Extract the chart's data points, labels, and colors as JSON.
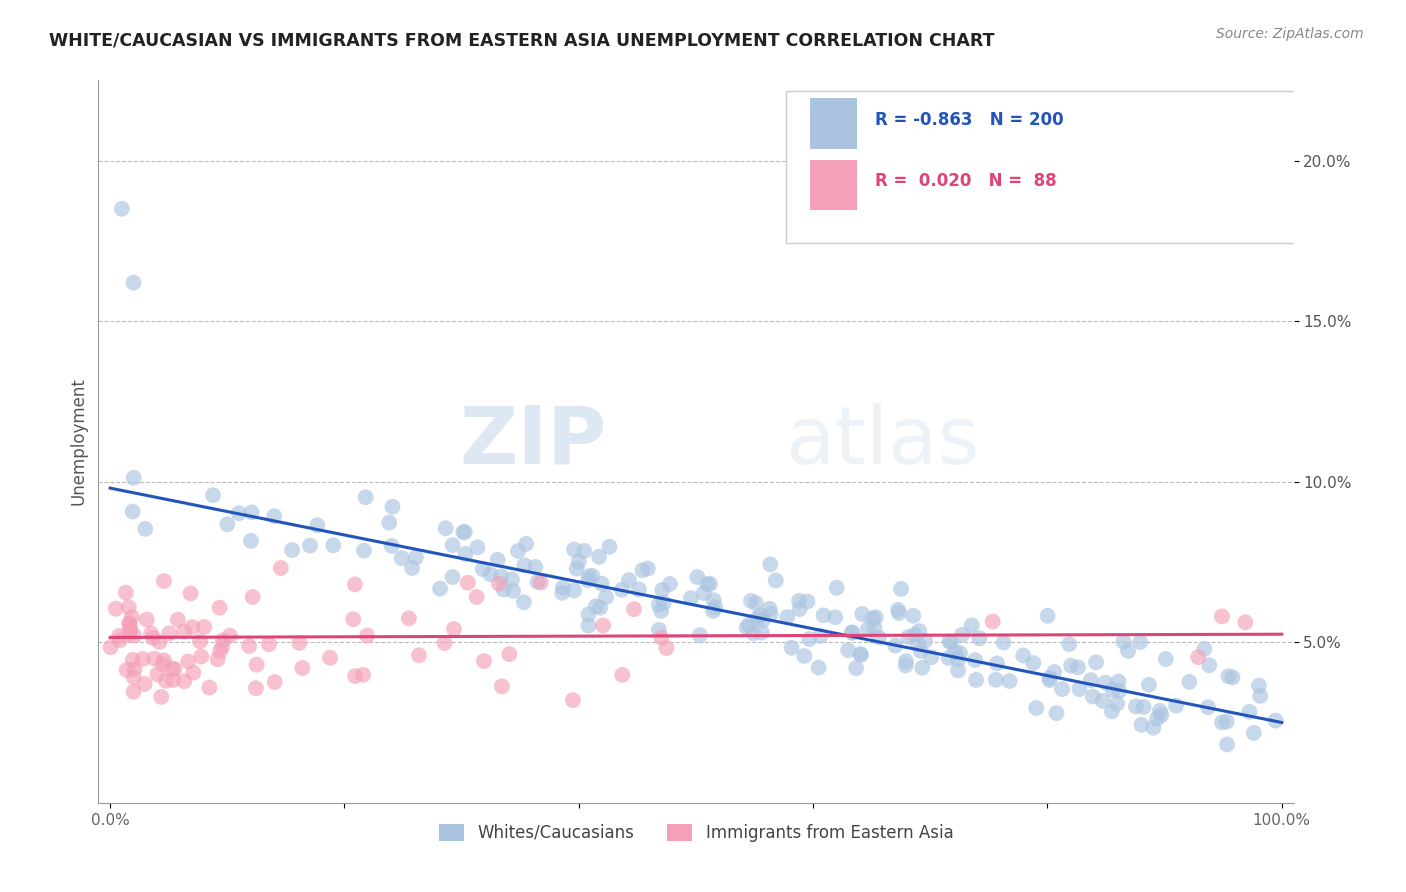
{
  "title": "WHITE/CAUCASIAN VS IMMIGRANTS FROM EASTERN ASIA UNEMPLOYMENT CORRELATION CHART",
  "source": "Source: ZipAtlas.com",
  "ylabel": "Unemployment",
  "y_ticks": [
    0.05,
    0.1,
    0.15,
    0.2
  ],
  "y_tick_labels": [
    "5.0%",
    "10.0%",
    "15.0%",
    "20.0%"
  ],
  "ylim": [
    0.0,
    0.225
  ],
  "xlim": [
    -0.01,
    1.01
  ],
  "blue_R": -0.863,
  "blue_N": 200,
  "pink_R": 0.02,
  "pink_N": 88,
  "blue_color": "#aac4e0",
  "pink_color": "#f4a0b8",
  "blue_line_color": "#2255bb",
  "pink_line_color": "#dd4477",
  "legend_blue_label": "Whites/Caucasians",
  "legend_pink_label": "Immigrants from Eastern Asia",
  "watermark_zip": "ZIP",
  "watermark_atlas": "atlas",
  "background_color": "#ffffff",
  "grid_color": "#bbbbbb",
  "title_color": "#222222",
  "blue_trend_x0": 0.0,
  "blue_trend_x1": 1.0,
  "blue_trend_y0": 0.098,
  "blue_trend_y1": 0.025,
  "pink_trend_x0": 0.0,
  "pink_trend_x1": 1.0,
  "pink_trend_y0": 0.0515,
  "pink_trend_y1": 0.0525
}
